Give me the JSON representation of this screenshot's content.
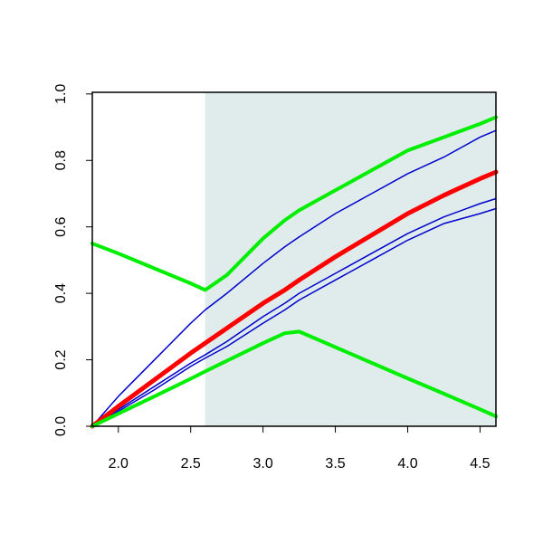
{
  "chart_data": {
    "type": "line",
    "x": [
      1.82,
      2.0,
      2.25,
      2.5,
      2.6,
      2.75,
      3.0,
      3.15,
      3.25,
      3.5,
      3.75,
      4.0,
      4.25,
      4.5,
      4.61
    ],
    "series": [
      {
        "color": "#0000cc",
        "width": 1.5,
        "values": [
          0,
          0.09,
          0.2,
          0.31,
          0.35,
          0.4,
          0.49,
          0.54,
          0.57,
          0.64,
          0.7,
          0.76,
          0.81,
          0.87,
          0.89
        ]
      },
      {
        "color": "#0000cc",
        "width": 1.5,
        "values": [
          0,
          0.05,
          0.12,
          0.19,
          0.215,
          0.255,
          0.33,
          0.37,
          0.4,
          0.46,
          0.52,
          0.58,
          0.63,
          0.67,
          0.685
        ]
      },
      {
        "color": "#0000cc",
        "width": 1.5,
        "values": [
          0,
          0.045,
          0.11,
          0.18,
          0.205,
          0.24,
          0.31,
          0.35,
          0.38,
          0.44,
          0.5,
          0.56,
          0.61,
          0.64,
          0.655
        ]
      },
      {
        "color": "#ff0000",
        "width": 5,
        "values": [
          0,
          0.06,
          0.14,
          0.22,
          0.25,
          0.295,
          0.37,
          0.41,
          0.44,
          0.51,
          0.575,
          0.64,
          0.695,
          0.745,
          0.765
        ]
      },
      {
        "color": "#00ee00",
        "width": 4,
        "values": [
          0.55,
          0.52,
          0.475,
          0.43,
          0.41,
          0.455,
          0.565,
          0.62,
          0.65,
          0.71,
          0.77,
          0.83,
          0.87,
          0.91,
          0.93
        ]
      },
      {
        "color": "#00ee00",
        "width": 4,
        "values": [
          0,
          0.038,
          0.09,
          0.143,
          0.165,
          0.197,
          0.25,
          0.28,
          0.285,
          0.238,
          0.191,
          0.144,
          0.098,
          0.051,
          0.03
        ]
      }
    ],
    "xlim": [
      1.82,
      4.61
    ],
    "ylim": [
      0,
      1.005
    ],
    "xticks": [
      {
        "value": 2,
        "label": "2.0"
      },
      2.5,
      {
        "value": 3,
        "label": "3.0"
      },
      3.5,
      {
        "value": 4,
        "label": "4.0"
      },
      4.5
    ],
    "yticks": [
      {
        "value": 0,
        "label": "0.0"
      },
      0.2,
      0.4,
      0.6,
      0.8,
      {
        "value": 1,
        "label": "1.0"
      }
    ],
    "shade_xmin": 2.6,
    "shade_color": "#e0ecec"
  }
}
